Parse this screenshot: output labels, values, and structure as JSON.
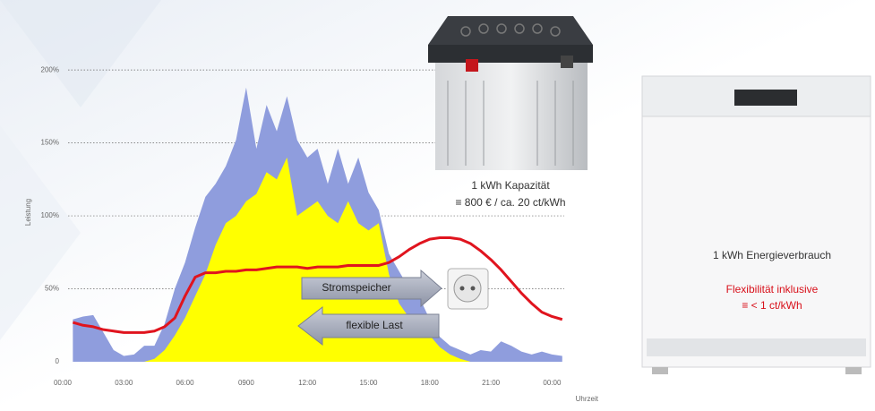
{
  "chart_data": {
    "type": "area",
    "x_label": "Uhrzeit",
    "y_label": "Leistung",
    "xlim": [
      -0.35,
      25.3
    ],
    "ylim": [
      0,
      205
    ],
    "grid": true,
    "xticks": [
      {
        "value": 0,
        "label": "00:00"
      },
      {
        "value": 3,
        "label": "03:00"
      },
      {
        "value": 6,
        "label": "06:00"
      },
      {
        "value": 9,
        "label": "0900"
      },
      {
        "value": 12,
        "label": "12:00"
      },
      {
        "value": 15,
        "label": "15:00"
      },
      {
        "value": 18,
        "label": "18:00"
      },
      {
        "value": 21,
        "label": "21:00"
      },
      {
        "value": 24,
        "label": "00:00"
      }
    ],
    "yticks": [
      0,
      {
        "value": 50,
        "label": "50%"
      },
      {
        "value": 100,
        "label": "100%"
      },
      {
        "value": 150,
        "label": "150%"
      },
      {
        "value": 200,
        "label": "200%"
      }
    ],
    "x": [
      0.5,
      1,
      1.5,
      2,
      2.5,
      3,
      3.5,
      4,
      4.5,
      5,
      5.5,
      6,
      6.5,
      7,
      7.5,
      8,
      8.5,
      9,
      9.5,
      10,
      10.5,
      11,
      11.5,
      12,
      12.5,
      13,
      13.5,
      14,
      14.5,
      15,
      15.5,
      16,
      16.5,
      17,
      17.5,
      18,
      18.5,
      19,
      19.5,
      20,
      20.5,
      21,
      21.5,
      22,
      22.5,
      23,
      23.5,
      24,
      24.5
    ],
    "series": [
      {
        "kind": "area",
        "color": "#8f9ddd",
        "values": [
          29,
          31,
          32,
          20,
          8,
          4,
          5,
          11,
          11,
          26,
          50,
          68,
          92,
          113,
          122,
          134,
          152,
          188,
          146,
          176,
          158,
          182,
          152,
          140,
          146,
          122,
          146,
          122,
          140,
          116,
          104,
          74,
          62,
          50,
          44,
          29,
          17,
          11,
          8,
          5,
          8,
          7,
          14,
          11,
          7,
          5,
          7,
          5,
          4
        ]
      },
      {
        "kind": "area",
        "color": "#ffff00",
        "values": [
          0,
          0,
          0,
          0,
          0,
          0,
          0,
          0,
          2,
          8,
          18,
          30,
          45,
          60,
          80,
          95,
          100,
          110,
          115,
          130,
          125,
          140,
          100,
          105,
          110,
          100,
          95,
          110,
          95,
          90,
          95,
          60,
          40,
          30,
          25,
          18,
          10,
          5,
          2,
          0,
          0,
          0,
          0,
          0,
          0,
          0,
          0,
          0,
          0
        ]
      },
      {
        "kind": "line",
        "color": "#e0141e",
        "values": [
          27,
          25,
          24,
          22,
          21,
          20,
          20,
          20,
          21,
          24,
          30,
          45,
          58,
          61,
          61,
          62,
          62,
          63,
          63,
          64,
          65,
          65,
          65,
          64,
          65,
          65,
          65,
          66,
          66,
          66,
          66,
          68,
          72,
          77,
          81,
          84,
          85,
          85,
          84,
          81,
          76,
          70,
          63,
          55,
          47,
          40,
          34,
          31,
          29
        ]
      }
    ],
    "annotations": [
      "1 kWh Kapazität",
      "≡ 800 € / ca. 20 ct/kWh",
      "Stromspeicher",
      "flexible Last",
      "1 kWh Energieverbrauch",
      "Flexibilität inklusive",
      "≡ < 1 ct/kWh"
    ]
  }
}
